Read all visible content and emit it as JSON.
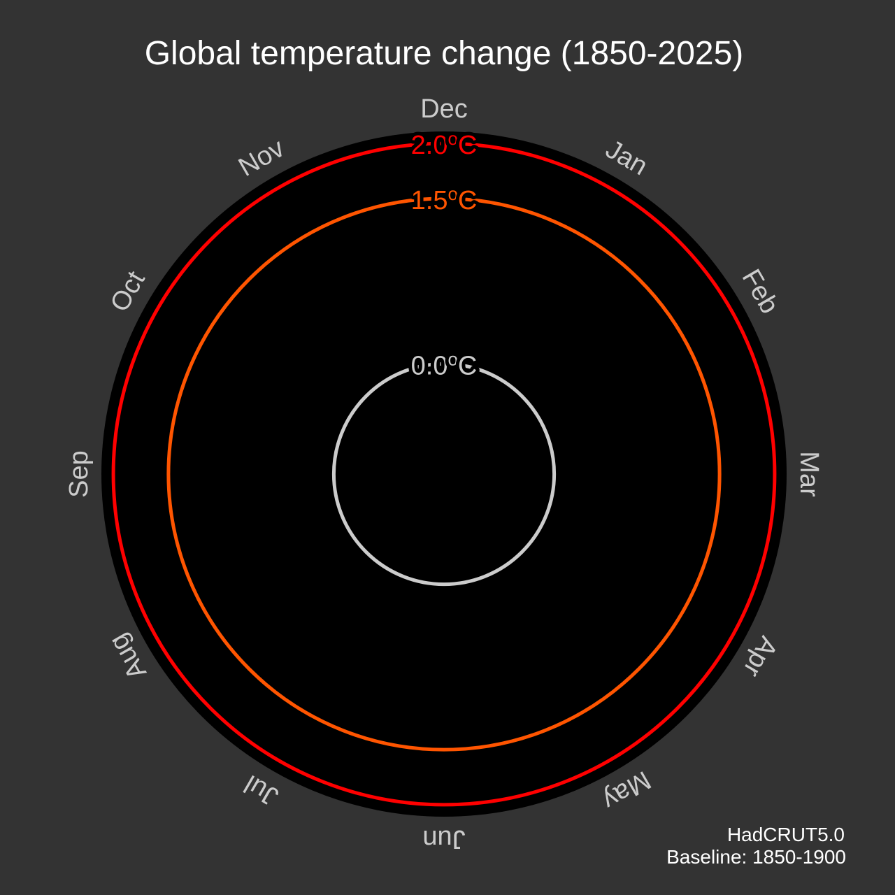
{
  "chart_data": {
    "type": "polar-line",
    "title": "Global temperature change (1850-2025)",
    "months": [
      "Jan",
      "Feb",
      "Mar",
      "Apr",
      "May",
      "Jun",
      "Jul",
      "Aug",
      "Sep",
      "Oct",
      "Nov",
      "Dec"
    ],
    "rings": [
      {
        "value": 0.0,
        "label": "0.0",
        "unit": "C",
        "color": "#cccccc"
      },
      {
        "value": 1.5,
        "label": "1.5",
        "unit": "C",
        "color": "#ff5500"
      },
      {
        "value": 2.0,
        "label": "2.0",
        "unit": "C",
        "color": "#ff0000"
      }
    ],
    "radial_range": [
      -1.0,
      2.4
    ],
    "series": [],
    "dataset": "HadCRUT5.0",
    "baseline": "Baseline: 1850-1900",
    "colors": {
      "background": "#333333",
      "plot_area": "#000000",
      "month_labels": "#cccccc",
      "title": "#ffffff"
    }
  }
}
